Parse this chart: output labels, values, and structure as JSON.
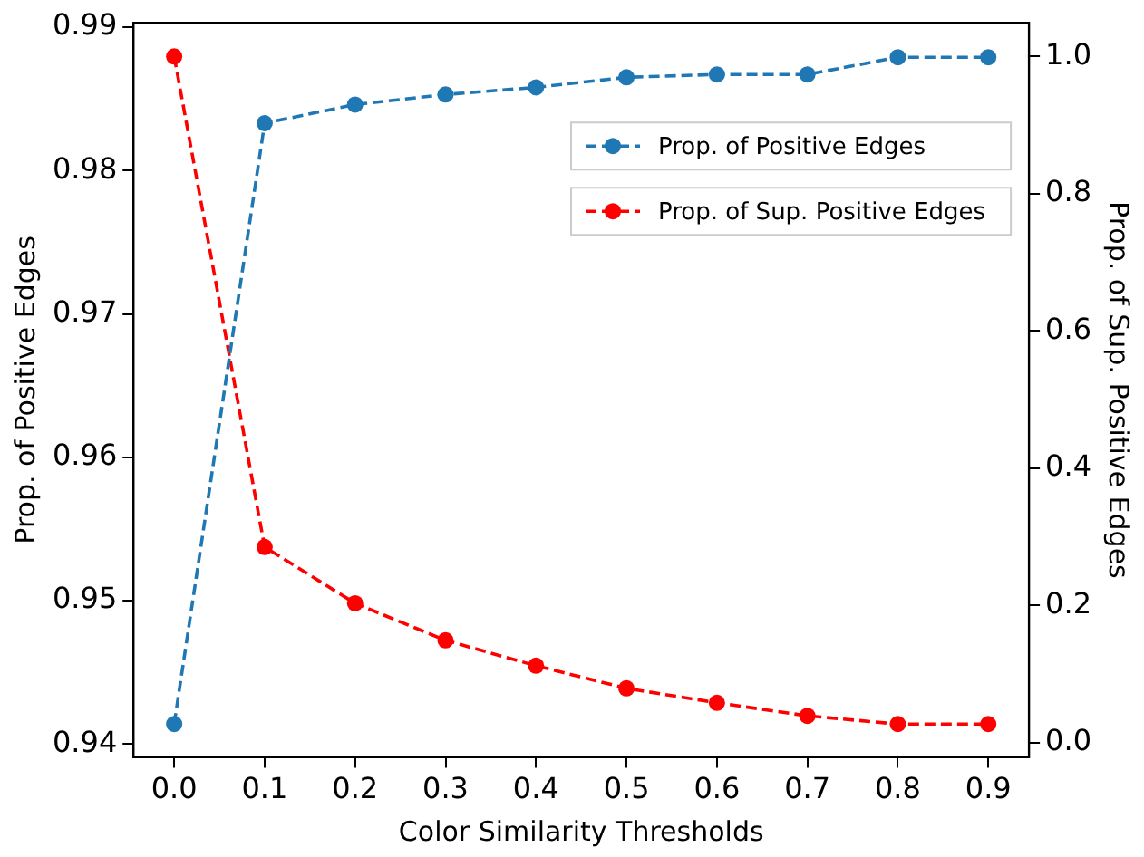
{
  "chart_data": {
    "type": "line",
    "xlabel": "Color Similarity Thresholds",
    "ylabel": "Prop. of Positive Edges",
    "y2label": "Prop. of Sup. Positive Edges",
    "x": [
      0.0,
      0.1,
      0.2,
      0.3,
      0.4,
      0.5,
      0.6,
      0.7,
      0.8,
      0.9
    ],
    "xlim": [
      -0.045,
      0.945
    ],
    "xticks": [
      {
        "value": 0,
        "label": "0.0"
      },
      0.1,
      0.2,
      0.3,
      0.4,
      0.5,
      0.6,
      0.7,
      0.8,
      0.9
    ],
    "ylim": [
      0.9391,
      0.9903
    ],
    "yticks": [
      0.94,
      0.95,
      0.96,
      0.97,
      0.98,
      0.99
    ],
    "y2lim": [
      -0.021,
      1.049
    ],
    "y2ticks": [
      {
        "value": 0,
        "label": "0.0"
      },
      0.2,
      0.4,
      0.6,
      0.8,
      {
        "value": 1,
        "label": "1.0"
      }
    ],
    "series": [
      {
        "name": "Prop. of Positive Edges",
        "color": "#1f77b4",
        "values": [
          0.9414,
          0.9833,
          0.9846,
          0.9853,
          0.9858,
          0.9865,
          0.9867,
          0.9867,
          0.9879,
          0.9879
        ]
      },
      {
        "name": "Prop. of Sup. Positive Edges",
        "color": "#ff0000",
        "axis": "y2",
        "values": [
          1.0,
          0.285,
          0.203,
          0.149,
          0.112,
          0.079,
          0.058,
          0.039,
          0.027,
          0.027
        ]
      }
    ],
    "marker": "circle",
    "line_style": "dashed",
    "grid": false,
    "legend": "top right"
  }
}
